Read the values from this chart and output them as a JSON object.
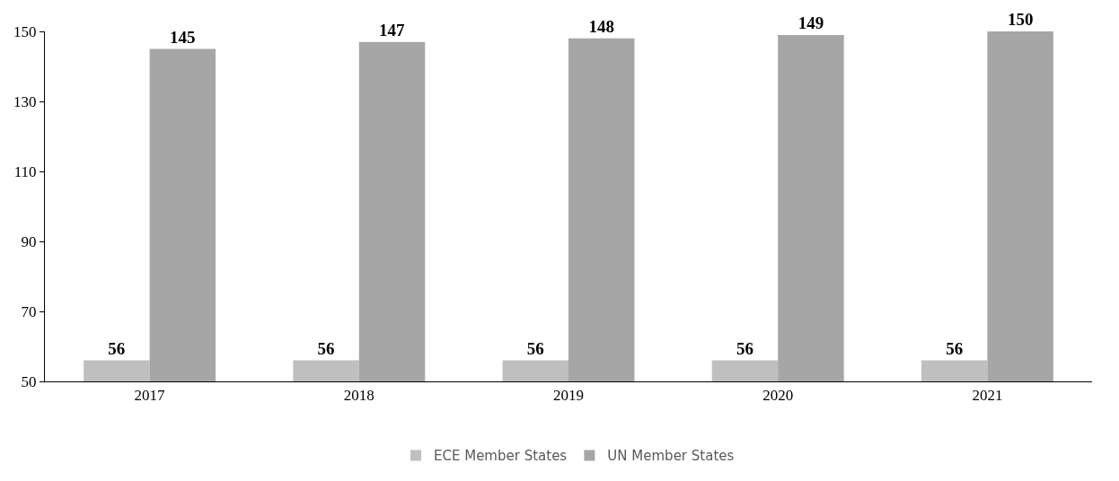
{
  "chart_data": {
    "type": "bar",
    "categories": [
      "2017",
      "2018",
      "2019",
      "2020",
      "2021"
    ],
    "series": [
      {
        "name": "ECE Member States",
        "color": "#bfbfbf",
        "values": [
          56,
          56,
          56,
          56,
          56
        ]
      },
      {
        "name": "UN Member States",
        "color": "#a6a6a6",
        "values": [
          145,
          147,
          148,
          149,
          150
        ]
      }
    ],
    "ylim": [
      50,
      150
    ],
    "yticks": [
      50,
      70,
      90,
      110,
      130,
      150
    ],
    "grid": false,
    "legend": "bottom",
    "data_labels": true
  }
}
